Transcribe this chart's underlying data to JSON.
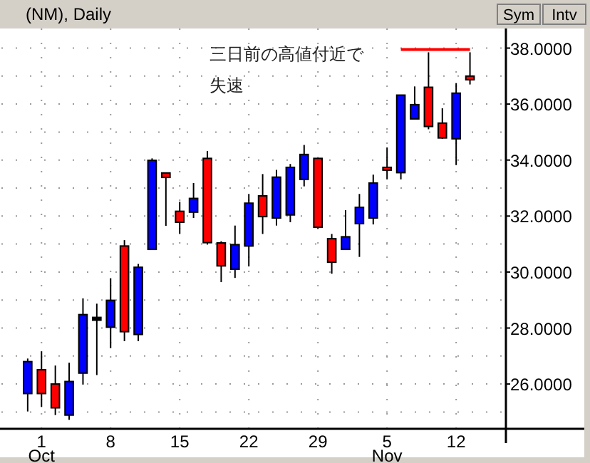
{
  "chart_data": {
    "type": "candlestick",
    "title": "(NM), Daily",
    "categories": [
      null,
      "1\nOct",
      null,
      null,
      null,
      null,
      "8",
      null,
      null,
      null,
      null,
      "15",
      null,
      null,
      null,
      null,
      "22",
      null,
      null,
      null,
      null,
      "29",
      null,
      null,
      null,
      null,
      "5\nNov",
      null,
      null,
      null,
      null,
      "12",
      null
    ],
    "ohlc": [
      [
        25.66,
        26.91,
        25.02,
        26.8
      ],
      [
        26.51,
        27.17,
        25.18,
        25.66
      ],
      [
        26.0,
        26.66,
        24.89,
        25.15
      ],
      [
        24.89,
        26.76,
        24.72,
        26.09
      ],
      [
        26.39,
        29.06,
        25.98,
        28.48
      ],
      [
        28.38,
        28.87,
        26.32,
        28.28
      ],
      [
        28.03,
        29.78,
        27.28,
        28.99
      ],
      [
        30.93,
        31.14,
        27.53,
        27.87
      ],
      [
        27.77,
        30.29,
        27.53,
        30.17
      ],
      [
        30.81,
        34.06,
        30.81,
        33.99
      ],
      [
        33.54,
        33.54,
        31.65,
        33.38
      ],
      [
        32.17,
        32.51,
        31.36,
        31.78
      ],
      [
        32.14,
        33.18,
        31.93,
        32.63
      ],
      [
        34.06,
        34.32,
        30.98,
        31.05
      ],
      [
        31.04,
        31.1,
        29.64,
        30.22
      ],
      [
        30.1,
        31.66,
        29.79,
        30.98
      ],
      [
        30.93,
        32.79,
        30.2,
        32.46
      ],
      [
        32.72,
        33.5,
        31.36,
        31.98
      ],
      [
        31.93,
        33.65,
        31.66,
        33.39
      ],
      [
        32.04,
        33.86,
        31.78,
        33.74
      ],
      [
        33.31,
        34.54,
        33.06,
        34.2
      ],
      [
        34.06,
        34.06,
        31.55,
        31.6
      ],
      [
        31.19,
        31.36,
        29.94,
        30.35
      ],
      [
        30.81,
        32.21,
        30.81,
        31.26
      ],
      [
        31.73,
        32.79,
        30.54,
        32.31
      ],
      [
        31.93,
        33.48,
        31.7,
        33.18
      ],
      [
        33.74,
        34.45,
        33.31,
        33.64
      ],
      [
        33.55,
        36.32,
        33.31,
        36.32
      ],
      [
        35.47,
        36.63,
        35.47,
        35.98
      ],
      [
        36.6,
        37.85,
        35.1,
        35.2
      ],
      [
        35.32,
        35.85,
        34.76,
        34.79
      ],
      [
        34.76,
        36.75,
        33.82,
        36.39
      ],
      [
        37.0,
        37.85,
        36.7,
        36.87
      ]
    ],
    "colors": [
      "#0000ff",
      "#ff0000",
      "#ff0000",
      "#0000ff",
      "#0000ff",
      "#000000",
      "#0000ff",
      "#ff0000",
      "#0000ff",
      "#0000ff",
      "#ff0000",
      "#ff0000",
      "#0000ff",
      "#ff0000",
      "#ff0000",
      "#0000ff",
      "#0000ff",
      "#ff0000",
      "#0000ff",
      "#0000ff",
      "#0000ff",
      "#ff0000",
      "#ff0000",
      "#0000ff",
      "#0000ff",
      "#0000ff",
      "#ff0000",
      "#0000ff",
      "#0000ff",
      "#ff0000",
      "#ff0000",
      "#0000ff",
      "#ff0000"
    ],
    "series": [
      {
        "type": "line",
        "color": "#ff0000",
        "values": [
          null,
          null,
          null,
          null,
          null,
          null,
          null,
          null,
          null,
          null,
          null,
          null,
          null,
          null,
          null,
          null,
          null,
          null,
          null,
          null,
          null,
          null,
          null,
          null,
          null,
          null,
          null,
          37.95,
          37.95,
          37.95,
          37.95,
          37.95,
          37.95
        ]
      }
    ],
    "ylim": [
      24.4,
      38.7
    ],
    "yticks": [
      {
        "value": 25,
        "label": null
      },
      {
        "value": 26,
        "label": "26.0000"
      },
      {
        "value": 27,
        "label": null
      },
      {
        "value": 28,
        "label": "28.0000"
      },
      {
        "value": 29,
        "label": null
      },
      {
        "value": 30,
        "label": "30.0000"
      },
      {
        "value": 31,
        "label": null
      },
      {
        "value": 32,
        "label": "32.0000"
      },
      {
        "value": 33,
        "label": null
      },
      {
        "value": 34,
        "label": "34.0000"
      },
      {
        "value": 35,
        "label": null
      },
      {
        "value": 36,
        "label": "36.0000"
      },
      {
        "value": 37,
        "label": null
      },
      {
        "value": 38,
        "label": "38.0000"
      }
    ],
    "grid": true,
    "annotations": [
      "三日前の高値付近で",
      "失速",
      "Sym",
      "Intv"
    ]
  }
}
